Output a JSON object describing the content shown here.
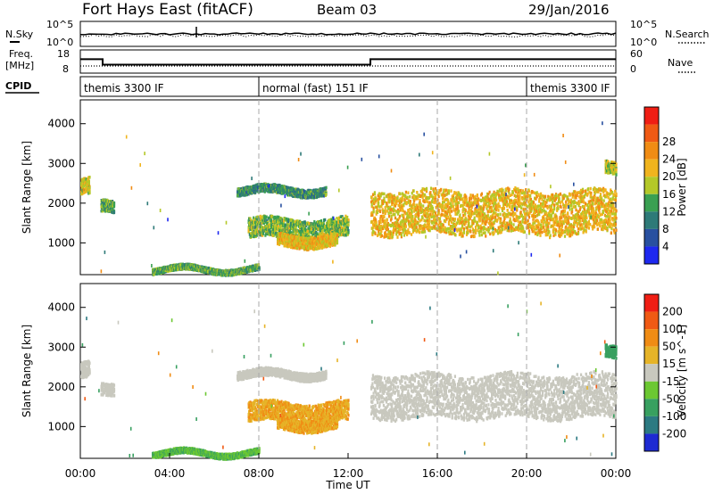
{
  "header": {
    "station": "Fort Hays East (fitACF)",
    "beam": "Beam 03",
    "date": "29/Jan/2016"
  },
  "noise_panel": {
    "left_label": "N.Sky",
    "right_label": "N.Search",
    "ytick_top": "10^5",
    "ytick_bottom": "10^0"
  },
  "freq_panel": {
    "left_label_1": "Freq.",
    "left_label_2": "[MHz]",
    "left_ticks": [
      "18",
      "8"
    ],
    "right_label": "Nave",
    "right_ticks": [
      "60",
      "0"
    ]
  },
  "cpid_panel": {
    "label": "CPID",
    "segments": [
      {
        "label": "themis 3300 IF",
        "start_h": 0,
        "end_h": 8
      },
      {
        "label": "normal (fast) 151 IF",
        "start_h": 8,
        "end_h": 20
      },
      {
        "label": "themis 3300 IF",
        "start_h": 20,
        "end_h": 24
      }
    ]
  },
  "power_colorbar": {
    "label": "Power [dB]",
    "ticks": [
      "4",
      "8",
      "12",
      "16",
      "20",
      "24",
      "28"
    ],
    "colors": [
      "#1e28f0",
      "#2850a0",
      "#2e7a78",
      "#3aa052",
      "#b4c828",
      "#f0b41e",
      "#f08c14",
      "#f05a14",
      "#f01e14"
    ]
  },
  "velocity_colorbar": {
    "label": "Velocity [m s^-1]",
    "ticks": [
      "200",
      "100",
      "50",
      "15",
      "-15",
      "-50",
      "-100",
      "-200"
    ],
    "colors": [
      "#1e2ad2",
      "#2c7a82",
      "#38a060",
      "#6cc832",
      "#c8c8be",
      "#e6b428",
      "#f08c14",
      "#f05a14",
      "#f01e14"
    ]
  },
  "axes": {
    "y_label": "Slant Range [km]",
    "y_ticks": [
      "1000",
      "2000",
      "3000",
      "4000"
    ],
    "x_label": "Time UT",
    "x_ticks": [
      "00:00",
      "04:00",
      "08:00",
      "12:00",
      "16:00",
      "20:00",
      "00:00"
    ]
  },
  "chart_data": {
    "type": "heatmap",
    "x_range_hours": [
      0,
      24
    ],
    "y_range_km": [
      200,
      4600
    ],
    "frequency_mhz": [
      {
        "start_h": 0,
        "end_h": 1,
        "value": 14
      },
      {
        "start_h": 1,
        "end_h": 13,
        "value": 10.5
      },
      {
        "start_h": 13,
        "end_h": 24,
        "value": 14
      }
    ],
    "echo_regions": [
      {
        "t0": 0.0,
        "t1": 0.4,
        "r0": 2200,
        "r1": 2600,
        "power_db": 20,
        "velocity": 0
      },
      {
        "t0": 0.9,
        "t1": 1.5,
        "r0": 1700,
        "r1": 2000,
        "power_db": 14,
        "velocity": 0
      },
      {
        "t0": 3.2,
        "t1": 8.0,
        "r0": 250,
        "r1": 380,
        "power_db": 14,
        "velocity": 30
      },
      {
        "t0": 7.0,
        "t1": 11.0,
        "r0": 2200,
        "r1": 2400,
        "power_db": 12,
        "velocity": 0
      },
      {
        "t0": 7.5,
        "t1": 12.0,
        "r0": 1100,
        "r1": 1600,
        "power_db": 16,
        "velocity": -30
      },
      {
        "t0": 8.8,
        "t1": 11.5,
        "r0": 900,
        "r1": 1200,
        "power_db": 22,
        "velocity": -30
      },
      {
        "t0": 13.0,
        "t1": 24.0,
        "r0": 1200,
        "r1": 2300,
        "power_db": 22,
        "velocity": 0
      },
      {
        "t0": 23.5,
        "t1": 24.0,
        "r0": 2700,
        "r1": 3000,
        "power_db": 18,
        "velocity": 50
      }
    ]
  }
}
